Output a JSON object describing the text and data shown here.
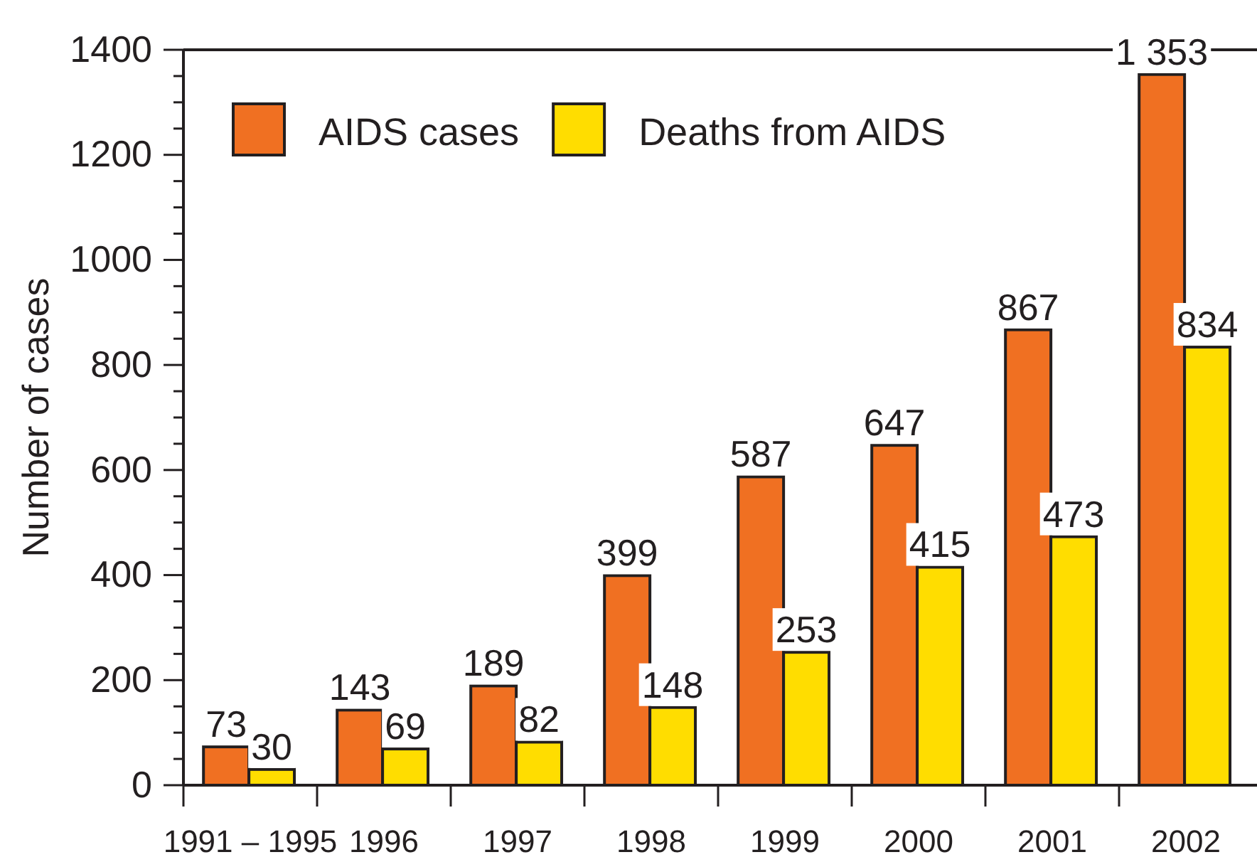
{
  "chart_data": {
    "type": "bar",
    "ylabel": "Number of cases",
    "categories": [
      "1991 – 1995",
      "1996",
      "1997",
      "1998",
      "1999",
      "2000",
      "2001",
      "2002"
    ],
    "series": [
      {
        "name": "AIDS cases",
        "color": "#f07022",
        "values": [
          73,
          143,
          189,
          399,
          587,
          647,
          867,
          1353
        ],
        "value_labels": [
          "73",
          "143",
          "189",
          "399",
          "587",
          "647",
          "867",
          "1 353"
        ]
      },
      {
        "name": "Deaths from AIDS",
        "color": "#ffdd00",
        "values": [
          30,
          69,
          82,
          148,
          253,
          415,
          473,
          834
        ],
        "value_labels": [
          "30",
          "69",
          "82",
          "148",
          "253",
          "415",
          "473",
          "834"
        ]
      }
    ],
    "ylim": [
      0,
      1400
    ],
    "yticks": [
      0,
      {
        "value": 50,
        "label": null
      },
      {
        "value": 100,
        "label": null
      },
      {
        "value": 150,
        "label": null
      },
      200,
      {
        "value": 250,
        "label": null
      },
      {
        "value": 300,
        "label": null
      },
      {
        "value": 350,
        "label": null
      },
      400,
      {
        "value": 450,
        "label": null
      },
      {
        "value": 500,
        "label": null
      },
      {
        "value": 550,
        "label": null
      },
      600,
      {
        "value": 650,
        "label": null
      },
      {
        "value": 700,
        "label": null
      },
      {
        "value": 750,
        "label": null
      },
      800,
      {
        "value": 850,
        "label": null
      },
      {
        "value": 900,
        "label": null
      },
      {
        "value": 950,
        "label": null
      },
      1000,
      {
        "value": 1050,
        "label": null
      },
      {
        "value": 1100,
        "label": null
      },
      {
        "value": 1150,
        "label": null
      },
      1200,
      {
        "value": 1250,
        "label": null
      },
      {
        "value": 1300,
        "label": null
      },
      {
        "value": 1350,
        "label": null
      },
      1400
    ],
    "legend": "top left",
    "grid": false
  }
}
